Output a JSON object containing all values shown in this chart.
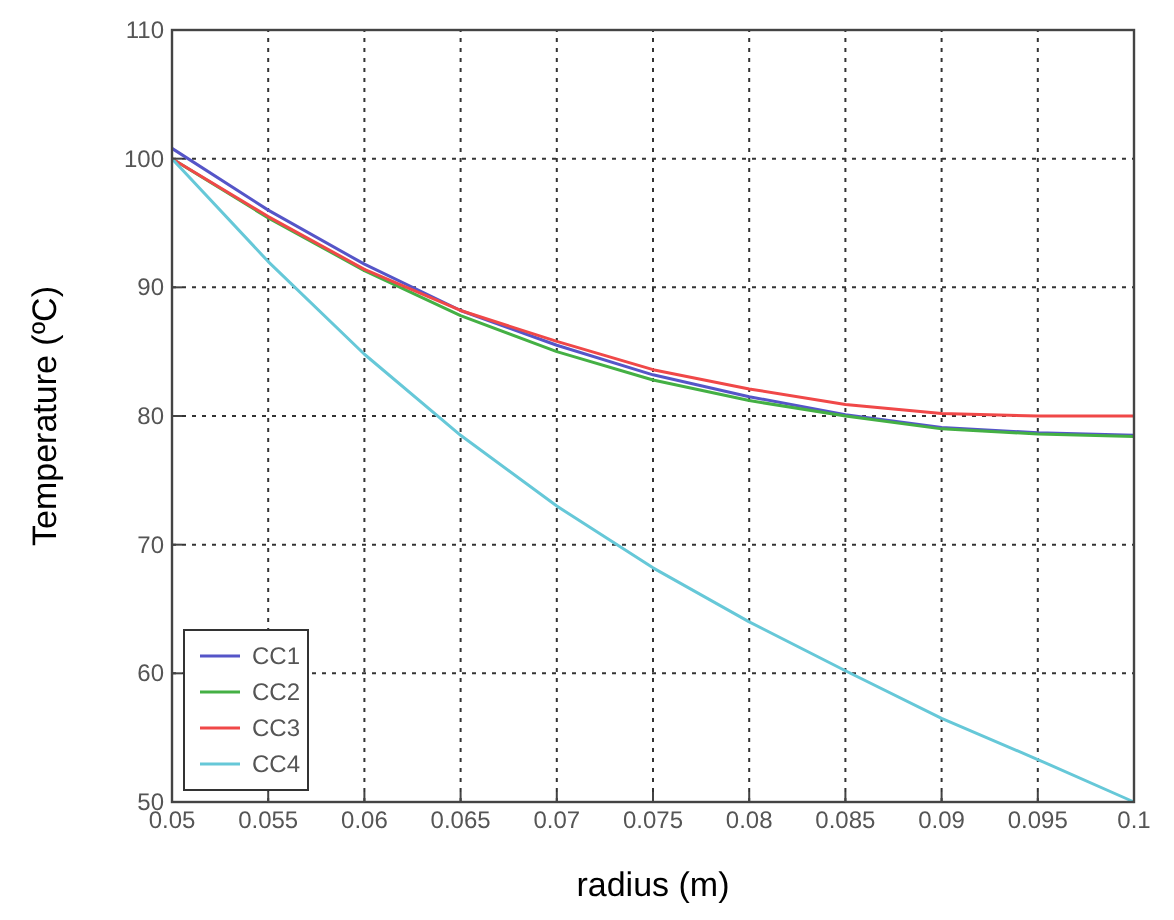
{
  "chart_data": {
    "type": "line",
    "xlabel": "radius (m)",
    "ylabel": "Temperature (ºC)",
    "x": [
      0.05,
      0.055,
      0.06,
      0.065,
      0.07,
      0.075,
      0.08,
      0.085,
      0.09,
      0.095,
      0.1
    ],
    "series": [
      {
        "name": "CC1",
        "color": "#5555c8",
        "values": [
          100.8,
          96,
          91.8,
          88.2,
          85.5,
          83.2,
          81.5,
          80.1,
          79.1,
          78.7,
          78.5
        ]
      },
      {
        "name": "CC2",
        "color": "#44b044",
        "values": [
          100,
          95.4,
          91.3,
          87.8,
          85,
          82.8,
          81.2,
          80,
          79,
          78.6,
          78.4
        ]
      },
      {
        "name": "CC3",
        "color": "#f04848",
        "values": [
          100,
          95.5,
          91.4,
          88.2,
          85.8,
          83.6,
          82.1,
          80.9,
          80.2,
          80,
          80
        ]
      },
      {
        "name": "CC4",
        "color": "#66c8d8",
        "values": [
          100,
          92,
          84.8,
          78.5,
          73,
          68.2,
          64,
          60.2,
          56.5,
          53.3,
          50
        ]
      }
    ],
    "xlim": [
      0.05,
      0.1
    ],
    "xticks": [
      0.05,
      0.055,
      0.06,
      0.065,
      0.07,
      0.075,
      0.08,
      0.085,
      0.09,
      0.095,
      0.1
    ],
    "ylim": [
      50,
      110
    ],
    "yticks": [
      50,
      60,
      70,
      80,
      90,
      100,
      110
    ],
    "grid": true,
    "legend": "bottom left",
    "line_style": "solid",
    "marker": "none"
  }
}
